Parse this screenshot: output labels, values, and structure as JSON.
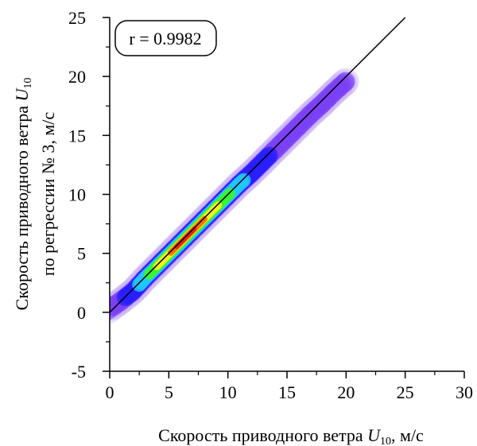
{
  "chart_data": {
    "type": "scatter",
    "subtype": "density-heatmap",
    "xlabel": "Скорость приводного ветра U10, м/с",
    "xlabel_parts": [
      "Скорость приводного ветра ",
      "U",
      "10",
      ", м/с"
    ],
    "ylabel_lines": [
      "Скорость приводного ветра U10",
      "по регрессии № 3, м/с"
    ],
    "ylabel_line1_parts": [
      "Скорость приводного ветра ",
      "U",
      "10"
    ],
    "xlim": [
      0,
      30
    ],
    "ylim": [
      -5,
      25
    ],
    "x_ticks": [
      0,
      5,
      10,
      15,
      20,
      25,
      30
    ],
    "y_ticks": [
      -5,
      0,
      5,
      10,
      15,
      20,
      25
    ],
    "x_tick_labels": [
      "0",
      "5",
      "10",
      "15",
      "20",
      "25",
      "30"
    ],
    "y_tick_labels": [
      "-5",
      "0",
      "5",
      "10",
      "15",
      "20",
      "25"
    ],
    "annotation": "r = 0.9982",
    "annotation_position": "top-left",
    "reference_line": {
      "from": [
        0,
        0
      ],
      "to": [
        25,
        25
      ]
    },
    "density_clusters": [
      {
        "x": 0,
        "y": 0.3,
        "density": 0.05
      },
      {
        "x": 1,
        "y": 1.0,
        "density": 0.08
      },
      {
        "x": 2,
        "y": 1.8,
        "density": 0.2
      },
      {
        "x": 3,
        "y": 2.9,
        "density": 0.5
      },
      {
        "x": 4,
        "y": 3.9,
        "density": 0.72
      },
      {
        "x": 5,
        "y": 4.9,
        "density": 0.85
      },
      {
        "x": 6,
        "y": 5.9,
        "density": 1.0
      },
      {
        "x": 7,
        "y": 6.9,
        "density": 0.97
      },
      {
        "x": 8,
        "y": 7.9,
        "density": 0.88
      },
      {
        "x": 9,
        "y": 8.9,
        "density": 0.75
      },
      {
        "x": 10,
        "y": 9.9,
        "density": 0.6
      },
      {
        "x": 11,
        "y": 10.9,
        "density": 0.42
      },
      {
        "x": 12,
        "y": 11.8,
        "density": 0.25
      },
      {
        "x": 13,
        "y": 12.8,
        "density": 0.15
      },
      {
        "x": 14,
        "y": 13.8,
        "density": 0.1
      },
      {
        "x": 15,
        "y": 14.8,
        "density": 0.07
      },
      {
        "x": 16,
        "y": 15.8,
        "density": 0.05
      },
      {
        "x": 17,
        "y": 16.8,
        "density": 0.04
      },
      {
        "x": 18,
        "y": 17.7,
        "density": 0.03
      },
      {
        "x": 19,
        "y": 18.7,
        "density": 0.03
      },
      {
        "x": 20,
        "y": 19.6,
        "density": 0.02
      }
    ],
    "colormap": [
      "#c9b3f5",
      "#7a3ff5",
      "#2a1fff",
      "#1ec7ff",
      "#3af23a",
      "#f2f21e",
      "#ff6a00",
      "#e61e1e"
    ],
    "grid": false
  }
}
